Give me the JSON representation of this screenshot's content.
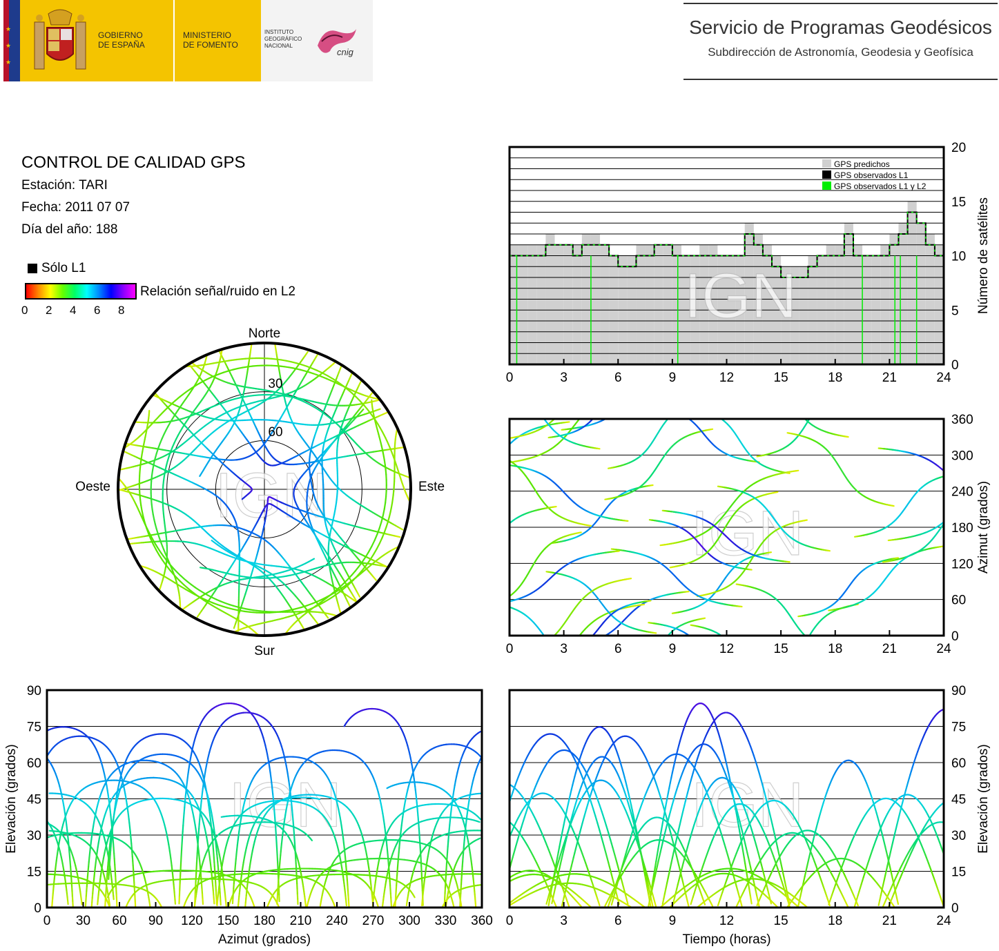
{
  "header": {
    "government_text": [
      "GOBIERNO",
      "DE ESPAÑA"
    ],
    "ministry_text": [
      "MINISTERIO",
      "DE FOMENTO"
    ],
    "institute_text": [
      "INSTITUTO",
      "GEOGRÁFICO",
      "NACIONAL"
    ],
    "cnig_text": "cnig",
    "title": "Servicio de Programas Geodésicos",
    "subtitle": "Subdirección de Astronomía, Geodesia y Geofísica"
  },
  "info": {
    "title": "CONTROL DE CALIDAD GPS",
    "station": "Estación: TARI",
    "date": "Fecha: 2011 07 07",
    "day_of_year": "Día del año: 188"
  },
  "legend": {
    "l1_only": "Sólo L1",
    "snr_label": "Relación señal/ruido en L2",
    "colorbar_ticks": [
      "0",
      "2",
      "4",
      "6",
      "8"
    ]
  },
  "watermark": "IGN",
  "colors": {
    "predicted": "#d0d0d0",
    "observed_l1": "#000000",
    "observed_l1_l2": "#00ee00",
    "low_snr": "#ff2200",
    "high_snr": "#8800ff"
  },
  "chart_data": [
    {
      "type": "bar",
      "x": [
        0,
        0.5,
        1,
        1.5,
        2,
        2.5,
        3,
        3.5,
        4,
        4.5,
        5,
        5.5,
        6,
        6.5,
        7,
        7.5,
        8,
        8.5,
        9,
        9.5,
        10,
        10.5,
        11,
        11.5,
        12,
        12.5,
        13,
        13.5,
        14,
        14.5,
        15,
        15.5,
        16,
        16.5,
        17,
        17.5,
        18,
        18.5,
        19,
        19.5,
        20,
        20.5,
        21,
        21.5,
        22,
        22.5,
        23,
        23.5
      ],
      "series": [
        {
          "name": "GPS predichos",
          "values": [
            11,
            11,
            11,
            11,
            12,
            11,
            11,
            11,
            12,
            12,
            11,
            10,
            10,
            10,
            11,
            11,
            11,
            11,
            11,
            10,
            10,
            11,
            11,
            10,
            10,
            10,
            13,
            12,
            11,
            10,
            9,
            9,
            9,
            10,
            10,
            11,
            11,
            13,
            11,
            10,
            10,
            11,
            12,
            13,
            15,
            13,
            12,
            11
          ]
        },
        {
          "name": "GPS observados L1 y L2",
          "values": [
            10,
            10,
            10,
            10,
            11,
            11,
            11,
            10,
            11,
            11,
            11,
            10,
            9,
            9,
            10,
            10,
            11,
            11,
            10,
            10,
            10,
            10,
            10,
            10,
            10,
            10,
            12,
            11,
            10,
            9,
            8,
            8,
            8,
            9,
            10,
            10,
            10,
            12,
            10,
            10,
            10,
            10,
            11,
            12,
            14,
            13,
            11,
            10
          ]
        }
      ],
      "legend": [
        "GPS predichos",
        "GPS observados L1",
        "GPS observados L1 y L2"
      ],
      "xlabel": "",
      "ylabel": "Número de satélites",
      "xlim": [
        0,
        24
      ],
      "ylim": [
        0,
        20
      ],
      "xticks": [
        "0",
        "3",
        "6",
        "9",
        "12",
        "15",
        "18",
        "21",
        "24"
      ],
      "yticks": [
        "0",
        "5",
        "10",
        "15",
        "20"
      ],
      "legend_position": "top-right"
    },
    {
      "type": "scatter",
      "xlabel": "",
      "ylabel": "Azimut (grados)",
      "xlim": [
        0,
        24
      ],
      "ylim": [
        0,
        360
      ],
      "xticks": [
        "0",
        "3",
        "6",
        "9",
        "12",
        "15",
        "18",
        "21",
        "24"
      ],
      "yticks": [
        "0",
        "60",
        "120",
        "180",
        "240",
        "300",
        "360"
      ]
    },
    {
      "type": "scatter",
      "xlabel": "",
      "ylabel": "",
      "labels": [
        "Norte",
        "Sur",
        "Este",
        "Oeste"
      ],
      "rings": [
        "30",
        "60"
      ]
    },
    {
      "type": "scatter",
      "xlabel": "Azimut (grados)",
      "ylabel": "Elevación (grados)",
      "xlim": [
        0,
        360
      ],
      "ylim": [
        0,
        90
      ],
      "xticks": [
        "0",
        "30",
        "60",
        "90",
        "120",
        "150",
        "180",
        "210",
        "240",
        "270",
        "300",
        "330",
        "360"
      ],
      "yticks": [
        "0",
        "15",
        "30",
        "45",
        "60",
        "75",
        "90"
      ]
    },
    {
      "type": "scatter",
      "xlabel": "Tiempo (horas)",
      "ylabel": "Elevación (grados)",
      "xlim": [
        0,
        24
      ],
      "ylim": [
        0,
        90
      ],
      "xticks": [
        "0",
        "3",
        "6",
        "9",
        "12",
        "15",
        "18",
        "21",
        "24"
      ],
      "yticks": [
        "0",
        "15",
        "30",
        "45",
        "60",
        "75",
        "90"
      ]
    }
  ]
}
